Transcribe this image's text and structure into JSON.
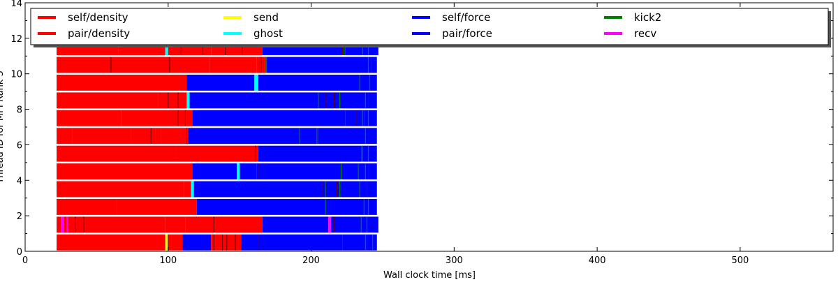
{
  "chart_data": {
    "type": "bar",
    "orientation": "horizontal",
    "xlabel": "Wall clock time [ms]",
    "ylabel": "Thread ID for MPI Rank 3",
    "xlim": [
      0,
      565
    ],
    "ylim": [
      0,
      14
    ],
    "xticks": [
      0,
      100,
      200,
      300,
      400,
      500
    ],
    "yticks": [
      0,
      2,
      4,
      6,
      8,
      10,
      12,
      14
    ],
    "grid": false,
    "legend_placement": "top",
    "legend": [
      {
        "name": "self/density",
        "color": "#ff0000"
      },
      {
        "name": "pair/density",
        "color": "#ff0000"
      },
      {
        "name": "send",
        "color": "#ffff00"
      },
      {
        "name": "ghost",
        "color": "#00ffff"
      },
      {
        "name": "self/force",
        "color": "#0000ff"
      },
      {
        "name": "pair/force",
        "color": "#0000ff"
      },
      {
        "name": "kick2",
        "color": "#008000"
      },
      {
        "name": "recv",
        "color": "#ff00ff"
      }
    ],
    "task_colors": {
      "density": "#ff0000",
      "force": "#0000ff",
      "kick2": "#008000",
      "ghost": "#00ffff",
      "send": "#ffff00",
      "recv": "#ff00ff"
    },
    "threads": [
      {
        "id": 0,
        "segments": [
          [
            22,
            98,
            "density"
          ],
          [
            98,
            100,
            "send"
          ],
          [
            100,
            110,
            "density"
          ],
          [
            110,
            130,
            "force"
          ],
          [
            130,
            151,
            "density"
          ],
          [
            151,
            222,
            "force"
          ],
          [
            222,
            239,
            "force"
          ],
          [
            239,
            246,
            "force"
          ]
        ]
      },
      {
        "id": 1,
        "segments": [
          [
            22,
            25,
            "density"
          ],
          [
            25,
            27,
            "recv"
          ],
          [
            27,
            29,
            "density"
          ],
          [
            29,
            30,
            "recv"
          ],
          [
            30,
            98,
            "density"
          ],
          [
            98,
            112,
            "density"
          ],
          [
            112,
            132,
            "density"
          ],
          [
            132,
            166,
            "density"
          ],
          [
            166,
            212,
            "force"
          ],
          [
            212,
            214,
            "recv"
          ],
          [
            214,
            235,
            "force"
          ],
          [
            235,
            247,
            "force"
          ]
        ]
      },
      {
        "id": 2,
        "segments": [
          [
            22,
            64,
            "density"
          ],
          [
            64,
            120,
            "density"
          ],
          [
            120,
            210,
            "force"
          ],
          [
            210,
            237,
            "force"
          ],
          [
            237,
            246,
            "force"
          ]
        ]
      },
      {
        "id": 3,
        "segments": [
          [
            22,
            111,
            "density"
          ],
          [
            111,
            116,
            "density"
          ],
          [
            116,
            118,
            "ghost"
          ],
          [
            118,
            209,
            "force"
          ],
          [
            209,
            221,
            "force"
          ],
          [
            221,
            239,
            "force"
          ],
          [
            239,
            246,
            "force"
          ]
        ]
      },
      {
        "id": 4,
        "segments": [
          [
            22,
            117,
            "density"
          ],
          [
            117,
            148,
            "force"
          ],
          [
            148,
            150,
            "ghost"
          ],
          [
            150,
            162,
            "force"
          ],
          [
            162,
            220,
            "force"
          ],
          [
            220,
            240,
            "force"
          ],
          [
            240,
            246,
            "force"
          ]
        ]
      },
      {
        "id": 5,
        "segments": [
          [
            22,
            105,
            "density"
          ],
          [
            105,
            163,
            "density"
          ],
          [
            163,
            235,
            "force"
          ],
          [
            235,
            246,
            "force"
          ]
        ]
      },
      {
        "id": 6,
        "segments": [
          [
            22,
            33,
            "density"
          ],
          [
            33,
            74,
            "density"
          ],
          [
            74,
            95,
            "density"
          ],
          [
            95,
            114,
            "density"
          ],
          [
            114,
            192,
            "force"
          ],
          [
            192,
            205,
            "force"
          ],
          [
            205,
            238,
            "force"
          ],
          [
            238,
            246,
            "force"
          ]
        ]
      },
      {
        "id": 7,
        "segments": [
          [
            22,
            67,
            "density"
          ],
          [
            67,
            107,
            "density"
          ],
          [
            107,
            117,
            "density"
          ],
          [
            117,
            224,
            "force"
          ],
          [
            224,
            237,
            "force"
          ],
          [
            237,
            246,
            "force"
          ]
        ]
      },
      {
        "id": 8,
        "segments": [
          [
            22,
            73,
            "density"
          ],
          [
            73,
            93,
            "density"
          ],
          [
            93,
            113,
            "density"
          ],
          [
            113,
            115,
            "ghost"
          ],
          [
            115,
            205,
            "force"
          ],
          [
            205,
            220,
            "force"
          ],
          [
            220,
            240,
            "force"
          ],
          [
            240,
            246,
            "force"
          ]
        ]
      },
      {
        "id": 9,
        "segments": [
          [
            22,
            113,
            "density"
          ],
          [
            113,
            160,
            "force"
          ],
          [
            160,
            163,
            "ghost"
          ],
          [
            163,
            234,
            "force"
          ],
          [
            234,
            246,
            "force"
          ]
        ]
      },
      {
        "id": 10,
        "segments": [
          [
            22,
            52,
            "density"
          ],
          [
            52,
            94,
            "density"
          ],
          [
            94,
            129,
            "density"
          ],
          [
            129,
            162,
            "density"
          ],
          [
            162,
            169,
            "density"
          ],
          [
            169,
            242,
            "force"
          ],
          [
            242,
            246,
            "force"
          ]
        ]
      },
      {
        "id": 11,
        "segments": [
          [
            22,
            65,
            "density"
          ],
          [
            65,
            98,
            "density"
          ],
          [
            98,
            100,
            "ghost"
          ],
          [
            100,
            130,
            "density"
          ],
          [
            130,
            166,
            "density"
          ],
          [
            166,
            224,
            "force"
          ],
          [
            224,
            240,
            "force"
          ],
          [
            240,
            247,
            "force"
          ]
        ]
      }
    ],
    "boundary_ticks": [
      [
        0,
        100
      ],
      [
        0,
        112
      ],
      [
        0,
        132
      ],
      [
        0,
        138
      ],
      [
        0,
        141
      ],
      [
        0,
        147
      ],
      [
        0,
        163
      ],
      [
        1,
        35
      ],
      [
        1,
        41
      ],
      [
        1,
        132
      ],
      [
        1,
        216
      ],
      [
        3,
        208
      ],
      [
        3,
        218
      ],
      [
        4,
        163
      ],
      [
        5,
        161
      ],
      [
        6,
        88
      ],
      [
        6,
        113
      ],
      [
        6,
        203
      ],
      [
        7,
        107
      ],
      [
        7,
        112
      ],
      [
        7,
        232
      ],
      [
        8,
        100
      ],
      [
        8,
        107
      ],
      [
        8,
        210
      ],
      [
        8,
        216
      ],
      [
        9,
        160
      ],
      [
        10,
        60
      ],
      [
        10,
        101
      ],
      [
        10,
        165
      ],
      [
        11,
        109
      ],
      [
        11,
        124
      ],
      [
        11,
        140
      ],
      [
        11,
        152
      ],
      [
        11,
        222
      ]
    ],
    "green_ticks": [
      [
        0,
        238
      ],
      [
        0,
        243
      ],
      [
        1,
        235
      ],
      [
        1,
        239
      ],
      [
        2,
        210
      ],
      [
        2,
        237
      ],
      [
        2,
        240
      ],
      [
        3,
        210
      ],
      [
        3,
        220
      ],
      [
        3,
        234
      ],
      [
        4,
        221
      ],
      [
        4,
        233
      ],
      [
        4,
        238
      ],
      [
        5,
        236
      ],
      [
        5,
        240
      ],
      [
        6,
        192
      ],
      [
        6,
        204
      ],
      [
        6,
        238
      ],
      [
        7,
        236
      ],
      [
        7,
        240
      ],
      [
        8,
        205
      ],
      [
        8,
        220
      ],
      [
        8,
        238
      ],
      [
        9,
        234
      ],
      [
        9,
        241
      ],
      [
        10,
        240
      ],
      [
        10,
        168
      ],
      [
        11,
        223
      ],
      [
        11,
        236
      ],
      [
        11,
        240
      ]
    ]
  }
}
